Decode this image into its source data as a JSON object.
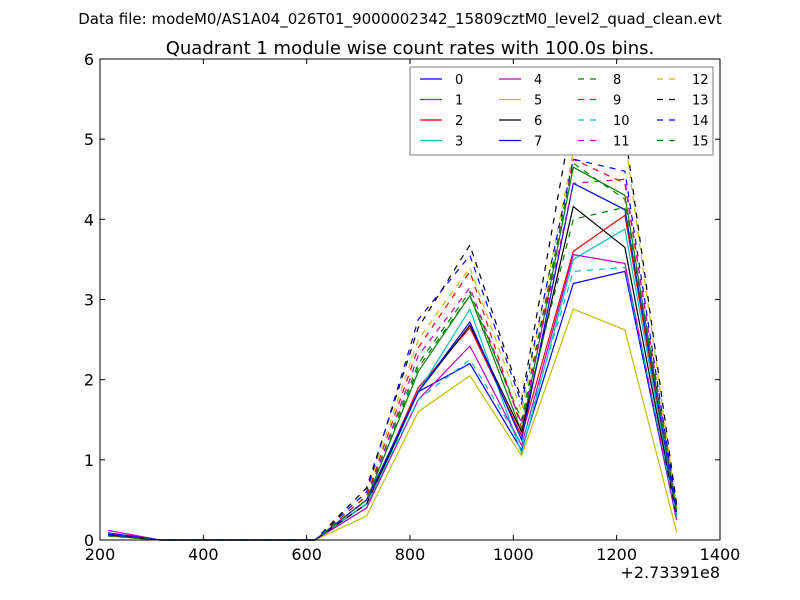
{
  "chart_data": {
    "type": "line",
    "suptitle": "Data file: modeM0/AS1A04_026T01_9000002342_15809cztM0_level2_quad_clean.evt",
    "title": "Quadrant 1 module wise count rates with 100.0s bins.",
    "xlabel": "",
    "ylabel": "",
    "x_offset_label": "+2.73391e8",
    "xlim": [
      200,
      1400
    ],
    "ylim": [
      0,
      6
    ],
    "xticks": [
      "200",
      "400",
      "600",
      "800",
      "1000",
      "1200",
      "1400"
    ],
    "yticks": [
      "0",
      "1",
      "2",
      "3",
      "4",
      "5",
      "6"
    ],
    "legend_position": "top-right",
    "legend_columns": 4,
    "x": [
      216,
      316,
      416,
      516,
      616,
      716,
      816,
      916,
      1016,
      1116,
      1216,
      1316
    ],
    "series": [
      {
        "name": "0",
        "color": "#0000ff",
        "dash": "solid",
        "values": [
          0.08,
          0,
          0,
          0,
          0,
          0.45,
          1.85,
          2.2,
          1.12,
          3.2,
          3.35,
          0.25
        ]
      },
      {
        "name": "1",
        "color": "#008000",
        "dash": "solid",
        "values": [
          0.05,
          0,
          0,
          0,
          0,
          0.5,
          2.1,
          3.05,
          1.35,
          4.65,
          4.3,
          0.35
        ]
      },
      {
        "name": "2",
        "color": "#ff0000",
        "dash": "solid",
        "values": [
          0.07,
          0,
          0,
          0,
          0,
          0.45,
          1.9,
          2.65,
          1.3,
          3.6,
          4.05,
          0.3
        ]
      },
      {
        "name": "3",
        "color": "#00bfbf",
        "dash": "solid",
        "values": [
          0.06,
          0,
          0,
          0,
          0,
          0.4,
          1.85,
          2.88,
          1.08,
          3.5,
          3.88,
          0.3
        ]
      },
      {
        "name": "4",
        "color": "#bf00bf",
        "dash": "solid",
        "values": [
          0.12,
          0,
          0,
          0,
          0,
          0.4,
          1.75,
          2.42,
          1.18,
          3.56,
          3.45,
          0.25
        ]
      },
      {
        "name": "5",
        "color": "#bfbf00",
        "dash": "solid",
        "values": [
          0.05,
          0,
          0,
          0,
          0,
          0.3,
          1.6,
          2.05,
          1.05,
          2.88,
          2.62,
          0.1
        ]
      },
      {
        "name": "6",
        "color": "#000000",
        "dash": "solid",
        "values": [
          0.06,
          0,
          0,
          0,
          0,
          0.45,
          1.85,
          2.68,
          1.35,
          4.16,
          3.65,
          0.3
        ]
      },
      {
        "name": "7",
        "color": "#0000ff",
        "dash": "solid",
        "values": [
          0.09,
          0,
          0,
          0,
          0,
          0.5,
          1.85,
          2.72,
          1.25,
          4.45,
          4.12,
          0.35
        ]
      },
      {
        "name": "8",
        "color": "#008000",
        "dash": "dashed",
        "values": [
          0.06,
          0,
          0,
          0,
          0,
          0.55,
          2.2,
          3.1,
          1.45,
          4.0,
          4.15,
          0.35
        ]
      },
      {
        "name": "9",
        "color": "#ff0000",
        "dash": "dashed",
        "values": [
          0.07,
          0,
          0,
          0,
          0,
          0.55,
          2.4,
          3.35,
          1.4,
          4.75,
          4.45,
          0.4
        ]
      },
      {
        "name": "10",
        "color": "#00bfbf",
        "dash": "dashed",
        "values": [
          0.06,
          0,
          0,
          0,
          0,
          0.45,
          1.75,
          2.25,
          1.2,
          3.35,
          3.4,
          0.3
        ]
      },
      {
        "name": "11",
        "color": "#bf00bf",
        "dash": "dashed",
        "values": [
          0.08,
          0,
          0,
          0,
          0,
          0.5,
          2.3,
          3.15,
          1.45,
          4.45,
          4.5,
          0.35
        ]
      },
      {
        "name": "12",
        "color": "#bfbf00",
        "dash": "dashed",
        "values": [
          0.05,
          0,
          0,
          0,
          0,
          0.6,
          2.5,
          3.4,
          1.6,
          4.85,
          5.0,
          0.4
        ]
      },
      {
        "name": "13",
        "color": "#000000",
        "dash": "dashed",
        "values": [
          0.06,
          0,
          0,
          0,
          0,
          0.65,
          2.65,
          3.68,
          1.75,
          5.35,
          5.1,
          0.45
        ]
      },
      {
        "name": "14",
        "color": "#0000ff",
        "dash": "dashed",
        "values": [
          0.07,
          0,
          0,
          0,
          0,
          0.6,
          2.75,
          3.55,
          1.7,
          4.75,
          4.6,
          0.4
        ]
      },
      {
        "name": "15",
        "color": "#008000",
        "dash": "dashed",
        "values": [
          0.05,
          0,
          0,
          0,
          0,
          0.5,
          2.15,
          3.05,
          1.5,
          4.7,
          4.25,
          0.35
        ]
      }
    ]
  }
}
